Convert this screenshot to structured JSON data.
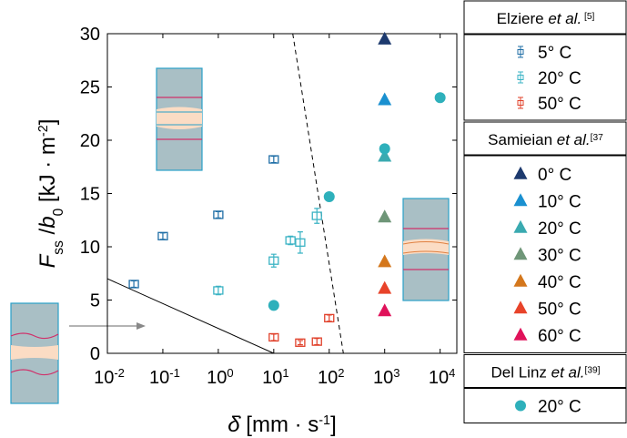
{
  "chart_data": {
    "type": "scatter",
    "xscale": "log",
    "xlim": [
      0.01,
      20000
    ],
    "ylim": [
      0,
      30
    ],
    "xticks": [
      {
        "value": 0.01,
        "label": "10",
        "exponent": "-2"
      },
      {
        "value": 0.1,
        "label": "10",
        "exponent": "-1"
      },
      {
        "value": 1,
        "label": "10",
        "exponent": "0"
      },
      {
        "value": 10,
        "label": "10",
        "exponent": "1"
      },
      {
        "value": 100,
        "label": "10",
        "exponent": "2"
      },
      {
        "value": 1000,
        "label": "10",
        "exponent": "3"
      },
      {
        "value": 10000,
        "label": "10",
        "exponent": "4"
      }
    ],
    "yticks": [
      0,
      5,
      10,
      15,
      20,
      25,
      30
    ],
    "xlabel": [
      {
        "text": "δ̇",
        "style": "italic"
      },
      {
        "text": " [mm · s"
      },
      {
        "text": "-1",
        "style": "sup"
      },
      {
        "text": "]"
      }
    ],
    "ylabel": [
      {
        "text": "F",
        "style": "italic"
      },
      {
        "text": "ss",
        "style": "sub"
      },
      {
        "text": " /"
      },
      {
        "text": "b",
        "style": "italic"
      },
      {
        "text": "0",
        "style": "sub"
      },
      {
        "text": " [kJ · m"
      },
      {
        "text": "-2",
        "style": "sup"
      },
      {
        "text": "]"
      }
    ],
    "groups": [
      {
        "title": [
          {
            "text": "Elziere "
          },
          {
            "text": "et al.",
            "style": "italic"
          },
          {
            "text": " [5]",
            "style": "sup"
          }
        ],
        "marker": "square-open",
        "series": [
          {
            "name": "5° C",
            "color": "#1f6ea6",
            "x": [
              0.03,
              0.1,
              1,
              10
            ],
            "values": [
              6.5,
              11,
              13,
              18.2
            ],
            "errors": [
              0.3,
              0.3,
              0.3,
              0.3
            ]
          },
          {
            "name": "20° C",
            "color": "#3ab3c4",
            "x": [
              1,
              10,
              20,
              30,
              60
            ],
            "values": [
              5.9,
              8.7,
              10.6,
              10.4,
              12.9
            ],
            "errors": [
              0.4,
              0.6,
              0.4,
              1.0,
              0.7
            ]
          },
          {
            "name": "50° C",
            "color": "#e0402a",
            "x": [
              10,
              30,
              60,
              100
            ],
            "values": [
              1.5,
              1.0,
              1.1,
              3.3
            ],
            "errors": [
              0.3,
              0.2,
              0.3,
              0.3
            ]
          }
        ]
      },
      {
        "title": [
          {
            "text": "Samieian "
          },
          {
            "text": "et al.",
            "style": "italic"
          },
          {
            "text": "[37",
            "style": "sup"
          }
        ],
        "marker": "triangle",
        "series": [
          {
            "name": "0° C",
            "color": "#1d3a6e",
            "x": [
              1000
            ],
            "values": [
              29.5
            ]
          },
          {
            "name": "10° C",
            "color": "#1a90d0",
            "x": [
              1000
            ],
            "values": [
              23.8
            ]
          },
          {
            "name": "20° C",
            "color": "#3aaab0",
            "x": [
              1000
            ],
            "values": [
              18.5
            ]
          },
          {
            "name": "30° C",
            "color": "#6f9678",
            "x": [
              1000
            ],
            "values": [
              12.8
            ]
          },
          {
            "name": "40° C",
            "color": "#d4771c",
            "x": [
              1000
            ],
            "values": [
              8.6
            ]
          },
          {
            "name": "50° C",
            "color": "#e8432a",
            "x": [
              1000
            ],
            "values": [
              6.1
            ]
          },
          {
            "name": "60° C",
            "color": "#e0125a",
            "x": [
              1000
            ],
            "values": [
              4.0
            ]
          }
        ]
      },
      {
        "title": [
          {
            "text": "Del Linz "
          },
          {
            "text": "et al.",
            "style": "italic"
          },
          {
            "text": "[39]",
            "style": "sup"
          }
        ],
        "marker": "circle",
        "series": [
          {
            "name": "20° C",
            "color": "#2eb0bb",
            "x": [
              10,
              100,
              1000,
              10000
            ],
            "values": [
              4.5,
              14.7,
              19.2,
              24
            ]
          }
        ]
      }
    ],
    "reference_lines": [
      {
        "x": [
          0.01,
          10
        ],
        "y": [
          7,
          0
        ],
        "style": "solid"
      },
      {
        "x": [
          22,
          180
        ],
        "y": [
          30,
          0
        ],
        "style": "dashed"
      }
    ]
  }
}
